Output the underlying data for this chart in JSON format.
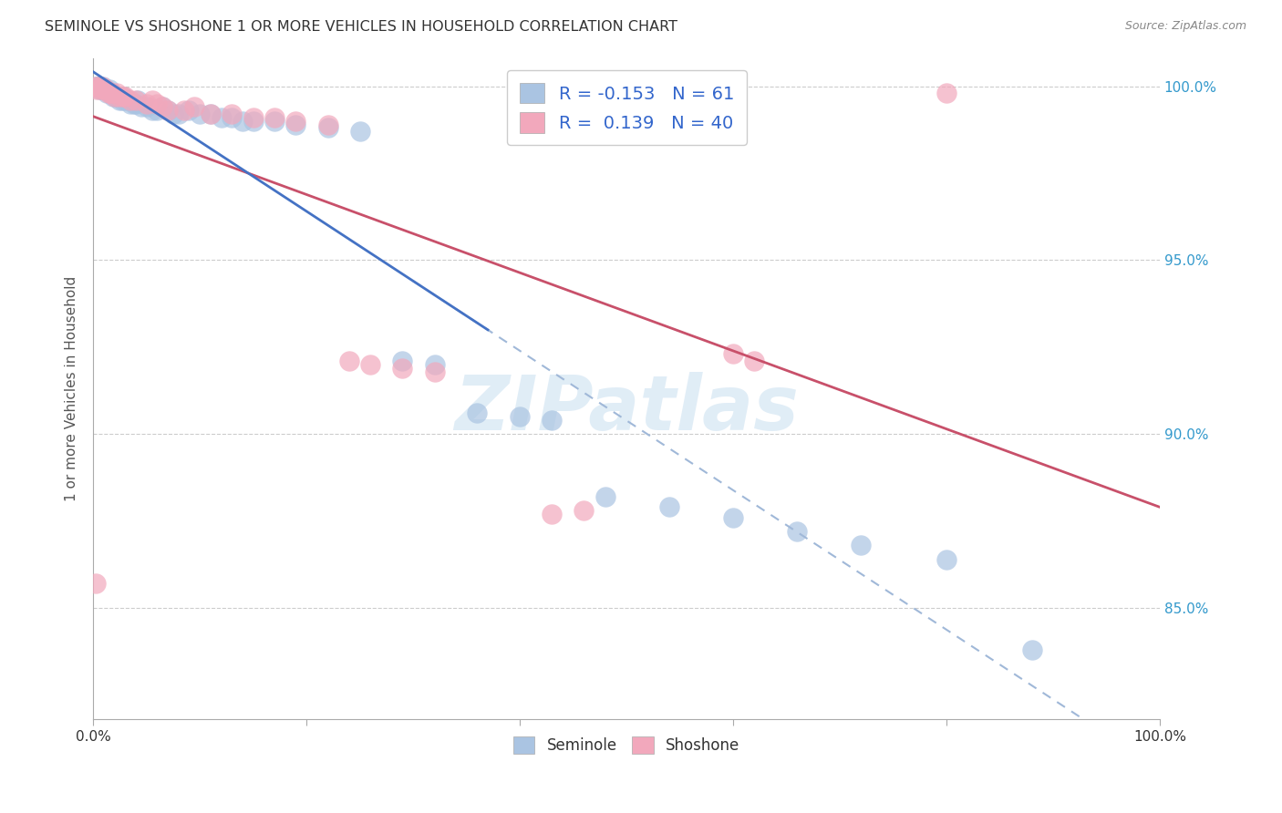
{
  "title": "SEMINOLE VS SHOSHONE 1 OR MORE VEHICLES IN HOUSEHOLD CORRELATION CHART",
  "source": "Source: ZipAtlas.com",
  "ylabel": "1 or more Vehicles in Household",
  "xlim": [
    0.0,
    1.0
  ],
  "ylim": [
    0.818,
    1.008
  ],
  "ytick_vals": [
    0.85,
    0.9,
    0.95,
    1.0
  ],
  "ytick_labels": [
    "85.0%",
    "90.0%",
    "95.0%",
    "100.0%"
  ],
  "xtick_vals": [
    0.0,
    1.0
  ],
  "xtick_labels": [
    "0.0%",
    "100.0%"
  ],
  "seminole_color": "#aac4e2",
  "shoshone_color": "#f2a8bc",
  "trend_seminole_solid_color": "#4472c4",
  "trend_seminole_dash_color": "#a0b8d8",
  "trend_shoshone_color": "#c8506a",
  "legend_R_seminole": "-0.153",
  "legend_N_seminole": "61",
  "legend_R_shoshone": "0.139",
  "legend_N_shoshone": "40",
  "watermark": "ZIPatlas",
  "seminole_x": [
    0.002,
    0.003,
    0.004,
    0.005,
    0.006,
    0.007,
    0.008,
    0.009,
    0.01,
    0.011,
    0.012,
    0.013,
    0.015,
    0.016,
    0.017,
    0.018,
    0.019,
    0.02,
    0.022,
    0.023,
    0.024,
    0.025,
    0.027,
    0.028,
    0.03,
    0.032,
    0.035,
    0.038,
    0.04,
    0.042,
    0.045,
    0.05,
    0.055,
    0.06,
    0.065,
    0.07,
    0.075,
    0.08,
    0.09,
    0.1,
    0.11,
    0.12,
    0.13,
    0.14,
    0.15,
    0.17,
    0.19,
    0.22,
    0.25,
    0.29,
    0.32,
    0.36,
    0.4,
    0.43,
    0.48,
    0.54,
    0.6,
    0.66,
    0.72,
    0.8,
    0.88
  ],
  "seminole_y": [
    1.0,
    1.0,
    1.0,
    1.0,
    0.999,
    1.0,
    0.999,
    1.0,
    0.999,
    0.999,
    0.999,
    0.998,
    0.999,
    0.998,
    0.998,
    0.998,
    0.997,
    0.997,
    0.997,
    0.997,
    0.997,
    0.996,
    0.996,
    0.997,
    0.996,
    0.996,
    0.995,
    0.995,
    0.995,
    0.996,
    0.994,
    0.994,
    0.993,
    0.993,
    0.994,
    0.993,
    0.992,
    0.992,
    0.993,
    0.992,
    0.992,
    0.991,
    0.991,
    0.99,
    0.99,
    0.99,
    0.989,
    0.988,
    0.987,
    0.921,
    0.92,
    0.906,
    0.905,
    0.904,
    0.882,
    0.879,
    0.876,
    0.872,
    0.868,
    0.864,
    0.838
  ],
  "shoshone_x": [
    0.002,
    0.003,
    0.005,
    0.007,
    0.008,
    0.01,
    0.012,
    0.014,
    0.016,
    0.018,
    0.02,
    0.022,
    0.025,
    0.028,
    0.03,
    0.035,
    0.04,
    0.05,
    0.055,
    0.06,
    0.065,
    0.07,
    0.085,
    0.095,
    0.11,
    0.13,
    0.15,
    0.17,
    0.19,
    0.22,
    0.24,
    0.26,
    0.29,
    0.32,
    0.6,
    0.62,
    0.8,
    0.002,
    0.43,
    0.46
  ],
  "shoshone_y": [
    1.0,
    0.999,
    1.0,
    0.999,
    1.0,
    0.999,
    0.999,
    0.998,
    0.998,
    0.998,
    0.997,
    0.998,
    0.997,
    0.997,
    0.997,
    0.996,
    0.996,
    0.995,
    0.996,
    0.995,
    0.994,
    0.993,
    0.993,
    0.994,
    0.992,
    0.992,
    0.991,
    0.991,
    0.99,
    0.989,
    0.921,
    0.92,
    0.919,
    0.918,
    0.923,
    0.921,
    0.998,
    0.857,
    0.877,
    0.878
  ],
  "trend_sem_x0": 0.0,
  "trend_sem_x1": 0.37,
  "trend_sem_dash_x0": 0.3,
  "trend_sem_dash_x1": 1.0,
  "trend_sho_x0": 0.0,
  "trend_sho_x1": 1.0
}
